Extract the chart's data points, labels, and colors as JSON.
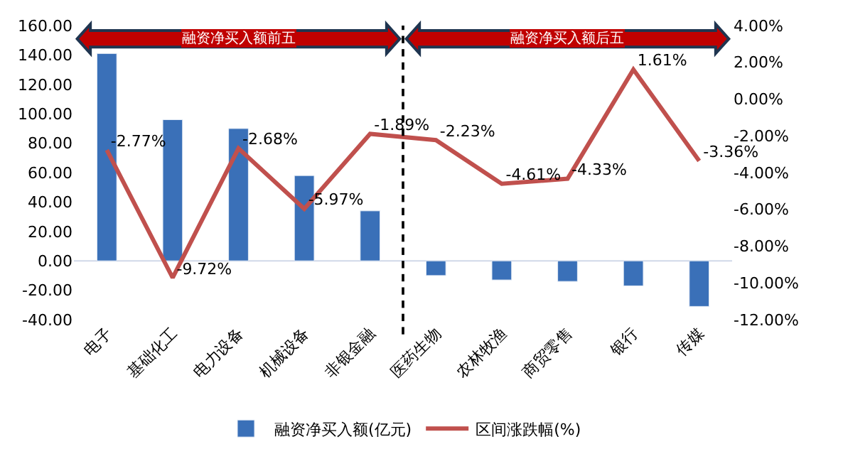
{
  "chart_data": {
    "type": "bar",
    "categories": [
      "电子",
      "基础化工",
      "电力设备",
      "机械设备",
      "非银金融",
      "医药生物",
      "农林牧渔",
      "商贸零售",
      "银行",
      "传媒"
    ],
    "series": [
      {
        "name": "融资净买入额(亿元)",
        "color": "#3a70b8",
        "values": [
          141,
          96,
          90,
          58,
          34,
          -10,
          -13,
          -14,
          -17,
          -31
        ]
      },
      {
        "name": "区间涨跌幅(%)",
        "type": "line",
        "axis": "y2",
        "color": "#c0504d",
        "values": [
          -2.77,
          -9.72,
          -2.68,
          -5.97,
          -1.89,
          -2.23,
          -4.61,
          -4.33,
          1.61,
          -3.36
        ],
        "value_labels": [
          "-2.77%",
          "-9.72%",
          "-2.68%",
          "-5.97%",
          "-1.89%",
          "-2.23%",
          "-4.61%",
          "-4.33%",
          "1.61%",
          "-3.36%"
        ]
      }
    ],
    "ylim": [
      -40,
      160
    ],
    "yticks": [
      {
        "value": -40,
        "label": "-40.00"
      },
      {
        "value": -20,
        "label": "-20.00"
      },
      {
        "value": 0,
        "label": "0.00"
      },
      {
        "value": 20,
        "label": "20.00"
      },
      {
        "value": 40,
        "label": "40.00"
      },
      {
        "value": 60,
        "label": "60.00"
      },
      {
        "value": 80,
        "label": "80.00"
      },
      {
        "value": 100,
        "label": "100.00"
      },
      {
        "value": 120,
        "label": "120.00"
      },
      {
        "value": 140,
        "label": "140.00"
      },
      {
        "value": 160,
        "label": "160.00"
      }
    ],
    "y2lim": [
      -12,
      4
    ],
    "y2ticks": [
      {
        "value": -12,
        "label": "-12.00%"
      },
      {
        "value": -10,
        "label": "-10.00%"
      },
      {
        "value": -8,
        "label": "-8.00%"
      },
      {
        "value": -6,
        "label": "-6.00%"
      },
      {
        "value": -4,
        "label": "-4.00%"
      },
      {
        "value": -2,
        "label": "-2.00%"
      },
      {
        "value": 0,
        "label": "0.00%"
      },
      {
        "value": 2,
        "label": "2.00%"
      },
      {
        "value": 4,
        "label": "4.00%"
      }
    ],
    "annotations": [
      "融资净买入额前五",
      "融资净买入额后五"
    ],
    "ref_lines": [
      {
        "axis": "y",
        "value": 0,
        "color": "#d0d8e8",
        "line_style": "solid"
      }
    ],
    "grid": false,
    "legend": "bottom",
    "marker": "none",
    "line_style": "solid"
  }
}
